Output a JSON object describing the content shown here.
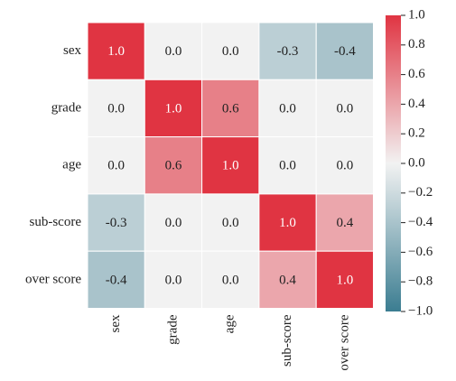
{
  "chart_data": {
    "type": "heatmap",
    "x_categories": [
      "sex",
      "grade",
      "age",
      "sub-score",
      "over score"
    ],
    "y_categories": [
      "sex",
      "grade",
      "age",
      "sub-score",
      "over score"
    ],
    "values": [
      [
        1,
        0,
        0,
        -0.3,
        -0.4
      ],
      [
        0,
        1,
        0.6,
        0,
        0
      ],
      [
        0,
        0.6,
        1,
        0,
        0
      ],
      [
        -0.3,
        0,
        0,
        1,
        0.4
      ],
      [
        -0.4,
        0,
        0,
        0.4,
        1
      ]
    ],
    "value_labels": [
      [
        "1.0",
        "0.0",
        "0.0",
        "-0.3",
        "-0.4"
      ],
      [
        "0.0",
        "1.0",
        "0.6",
        "0.0",
        "0.0"
      ],
      [
        "0.0",
        "0.6",
        "1.0",
        "0.0",
        "0.0"
      ],
      [
        "-0.3",
        "0.0",
        "0.0",
        "1.0",
        "0.4"
      ],
      [
        "-0.4",
        "0.0",
        "0.0",
        "0.4",
        "1.0"
      ]
    ],
    "zlim": [
      -1,
      1
    ],
    "colormap": [
      "#3b7d91",
      "#f2f2f2",
      "#e03442"
    ],
    "colorbar_ticks": [
      {
        "value": 1,
        "label": "1.0"
      },
      {
        "value": 0.8,
        "label": "0.8"
      },
      {
        "value": 0.6,
        "label": "0.6"
      },
      {
        "value": 0.4,
        "label": "0.4"
      },
      {
        "value": 0.2,
        "label": "0.2"
      },
      {
        "value": 0,
        "label": "0.0"
      },
      {
        "value": -0.2,
        "label": "−0.2"
      },
      {
        "value": -0.4,
        "label": "−0.4"
      },
      {
        "value": -0.6,
        "label": "−0.6"
      },
      {
        "value": -0.8,
        "label": "−0.8"
      },
      {
        "value": -1,
        "label": "−1.0"
      }
    ]
  }
}
